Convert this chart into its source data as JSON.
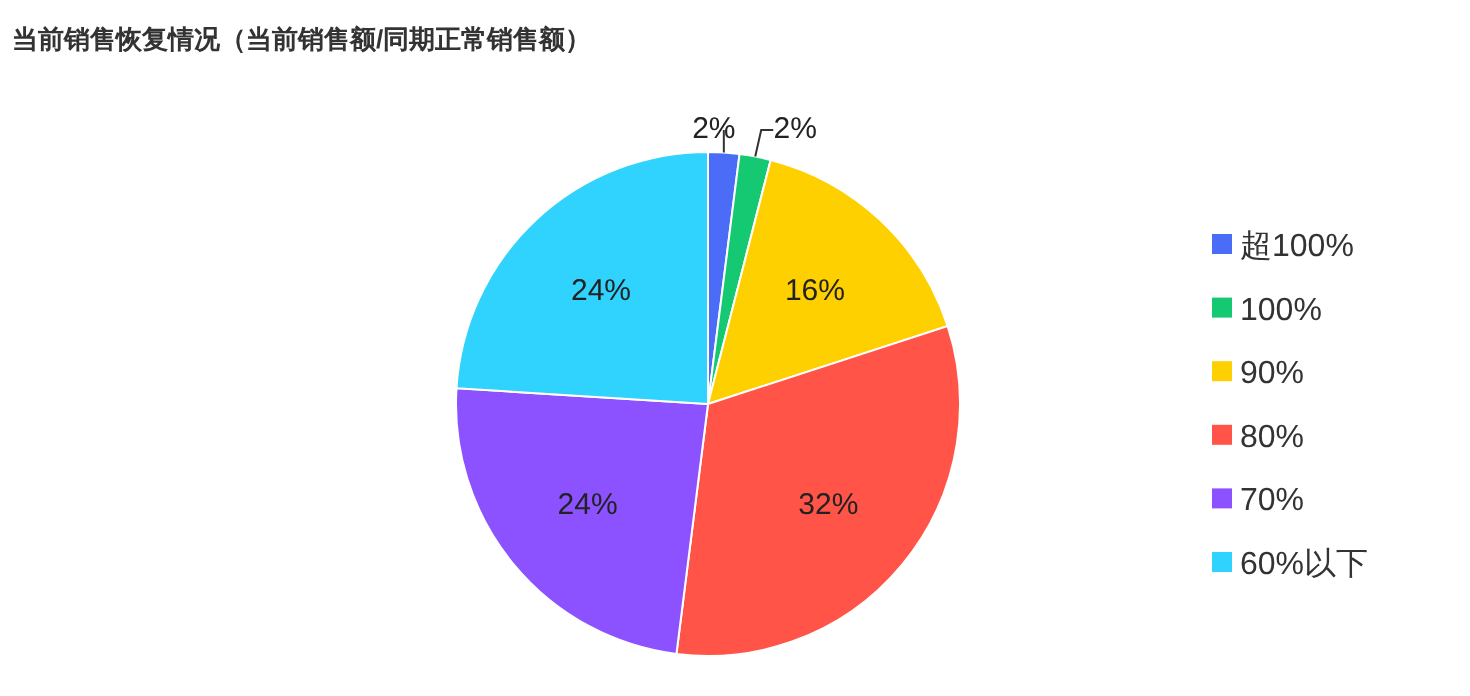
{
  "chart_data": {
    "type": "pie",
    "title": "当前销售恢复情况（当前销售额/同期正常销售额）",
    "categories": [
      "超100%",
      "100%",
      "90%",
      "80%",
      "70%",
      "60%以下"
    ],
    "values": [
      2,
      2,
      16,
      32,
      24,
      24
    ],
    "colors": [
      "#4a6cf7",
      "#14c972",
      "#ffd000",
      "#ff5447",
      "#8c52ff",
      "#2fd3fd"
    ],
    "value_labels": [
      "2%",
      "2%",
      "16%",
      "32%",
      "24%",
      "24%"
    ],
    "legend": "right"
  }
}
